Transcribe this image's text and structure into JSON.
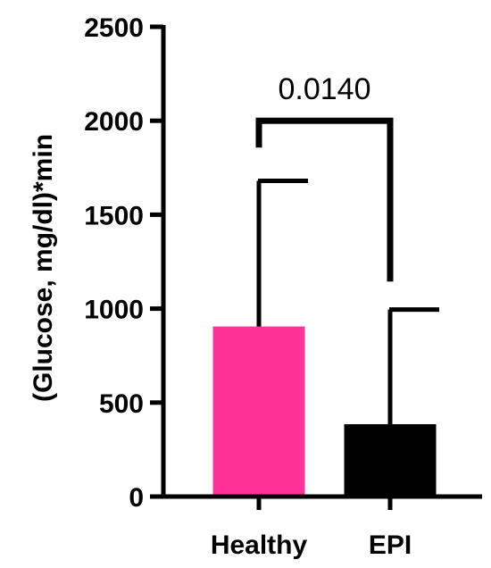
{
  "chart_data": {
    "type": "bar",
    "title": "",
    "xlabel": "",
    "ylabel": "(Glucose, mg/dl)*min",
    "ylim": [
      0,
      2500
    ],
    "yticks": [
      0,
      500,
      1000,
      1500,
      2000,
      2500
    ],
    "yticks_labels": [
      "0",
      "500",
      "1000",
      "1500",
      "2000",
      "2500"
    ],
    "categories": [
      "Healthy",
      "EPI"
    ],
    "values": [
      905,
      385
    ],
    "error_upper": [
      1680,
      995
    ],
    "colors": [
      "#ff3399",
      "#000000"
    ],
    "grid": false,
    "legend": "none",
    "annotations": [
      {
        "type": "significance-bracket",
        "between": [
          "Healthy",
          "EPI"
        ],
        "text": "0.0140",
        "y": 2000
      }
    ]
  }
}
